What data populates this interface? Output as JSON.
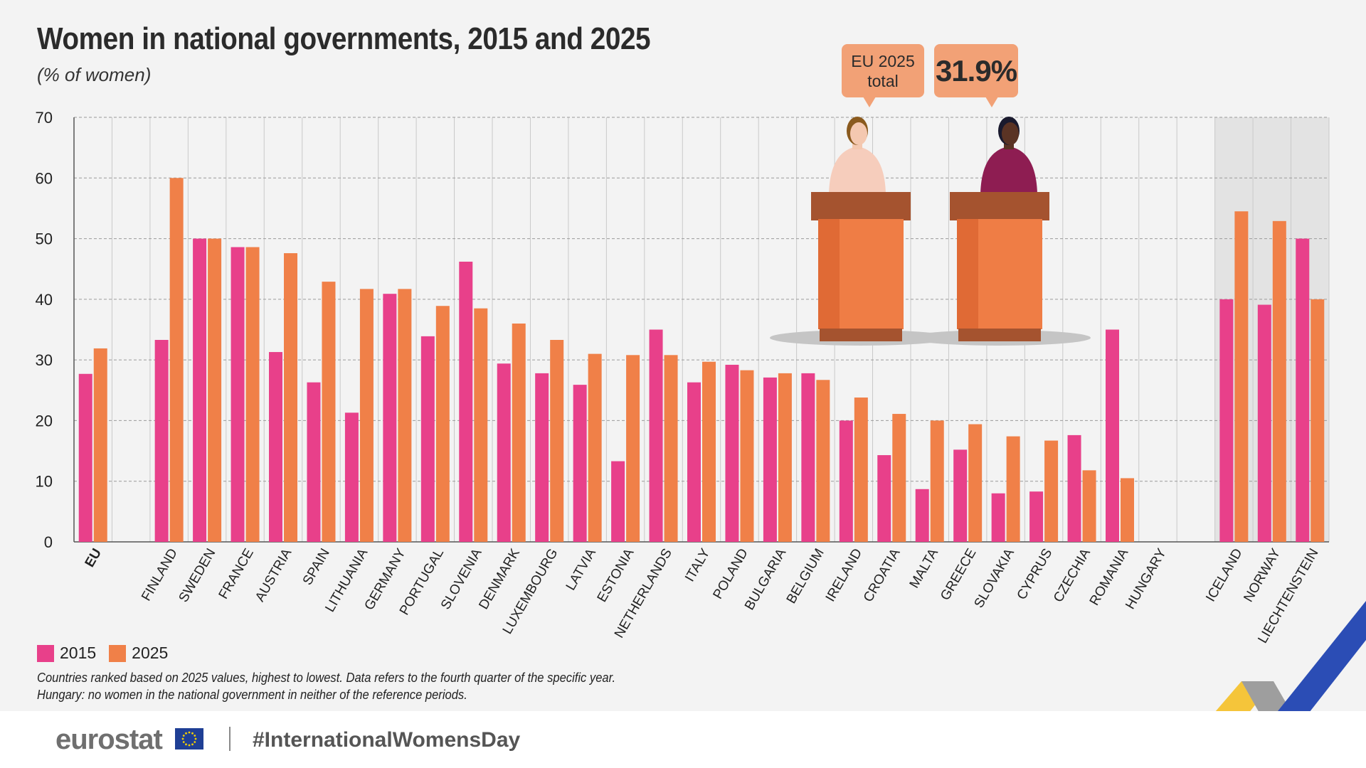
{
  "header": {
    "title": "Women in national governments, 2015 and 2025",
    "subtitle": "(% of women)"
  },
  "callout": {
    "label_line1": "EU 2025",
    "label_line2": "total",
    "value": "31.9%"
  },
  "legend": [
    {
      "label": "2015",
      "color": "#e8408a"
    },
    {
      "label": "2025",
      "color": "#f08048"
    }
  ],
  "notes": {
    "line1": "Countries ranked based on 2025 values, highest to lowest. Data refers to the fourth quarter of the specific year.",
    "line2": "Hungary: no women in the national government in neither of the reference periods."
  },
  "footer": {
    "brand": "eurostat",
    "hashtag": "#InternationalWomensDay"
  },
  "colors": {
    "series_2015": "#e8408a",
    "series_2025": "#f08048",
    "efta_band": "#e3e3e3",
    "grid": "#9a9a9a"
  },
  "chart_data": {
    "type": "bar",
    "title": "Women in national governments, 2015 and 2025",
    "subtitle": "(% of women)",
    "xlabel": "",
    "ylabel": "% of women",
    "ylim": [
      0,
      70
    ],
    "yticks": [
      0,
      10,
      20,
      30,
      40,
      50,
      60,
      70
    ],
    "grid": true,
    "legend_position": "bottom-left",
    "categories": [
      "EU",
      "",
      "FINLAND",
      "SWEDEN",
      "FRANCE",
      "AUSTRIA",
      "SPAIN",
      "LITHUANIA",
      "GERMANY",
      "PORTUGAL",
      "SLOVENIA",
      "DENMARK",
      "LUXEMBOURG",
      "LATVIA",
      "ESTONIA",
      "NETHERLANDS",
      "ITALY",
      "POLAND",
      "BULGARIA",
      "BELGIUM",
      "IRELAND",
      "CROATIA",
      "MALTA",
      "GREECE",
      "SLOVAKIA",
      "CYPRUS",
      "CZECHIA",
      "ROMANIA",
      "HUNGARY",
      "",
      "ICELAND",
      "NORWAY",
      "LIECHTENSTEIN"
    ],
    "highlighted_categories": [
      "ICELAND",
      "NORWAY",
      "LIECHTENSTEIN"
    ],
    "series": [
      {
        "name": "2015",
        "values": [
          27.7,
          null,
          33.3,
          50.0,
          48.6,
          31.3,
          26.3,
          21.3,
          40.9,
          33.9,
          46.2,
          29.4,
          27.8,
          25.9,
          13.3,
          35.0,
          26.3,
          29.2,
          27.1,
          27.8,
          20.0,
          14.3,
          8.7,
          15.2,
          8.0,
          8.3,
          17.6,
          35.0,
          0.0,
          null,
          40.0,
          39.1,
          50.0
        ]
      },
      {
        "name": "2025",
        "values": [
          31.9,
          null,
          60.0,
          50.0,
          48.6,
          47.6,
          42.9,
          41.7,
          41.7,
          38.9,
          38.5,
          36.0,
          33.3,
          31.0,
          30.8,
          30.8,
          29.7,
          28.3,
          27.8,
          26.7,
          23.8,
          21.1,
          20.0,
          19.4,
          17.4,
          16.7,
          11.8,
          10.5,
          0.0,
          null,
          54.5,
          52.9,
          40.0
        ]
      }
    ]
  }
}
